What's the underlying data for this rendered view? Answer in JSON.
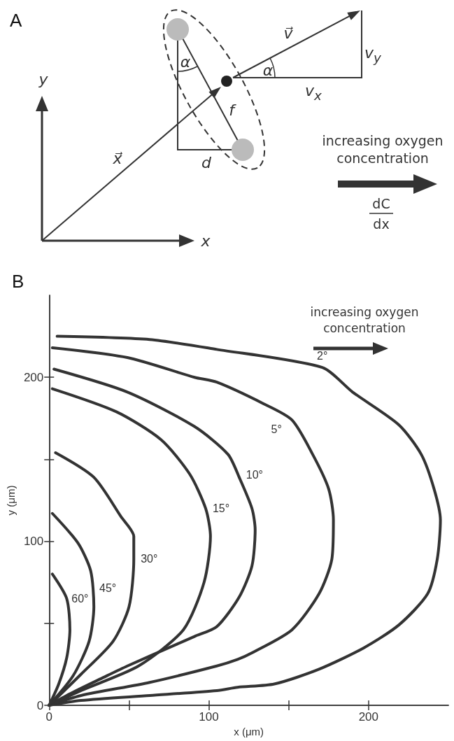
{
  "chart_data": [
    {
      "type": "other",
      "title": "A",
      "annotations": [
        "y",
        "x",
        "x⃗",
        "v⃗",
        "v$_{y}$",
        "v$_{x}$",
        "α",
        "α",
        "f",
        "d",
        "increasing oxygen concentration",
        "dC",
        "dx"
      ]
    },
    {
      "type": "line",
      "title": "B",
      "xlabel": "x (μm)",
      "ylabel": "y (μm)",
      "xlim": [
        0,
        250
      ],
      "ylim": [
        0,
        250
      ],
      "xticks": [
        0,
        {
          "value": 50,
          "label": null
        },
        100,
        {
          "value": 150,
          "label": null
        },
        200
      ],
      "yticks": [
        0,
        {
          "value": 50,
          "label": null
        },
        100,
        {
          "value": 150,
          "label": null
        },
        200
      ],
      "line_style": "solid",
      "series": [
        {
          "name": "2°",
          "color": "#333333",
          "x": [
            5,
            63,
            105,
            171,
            190,
            219,
            233,
            241,
            245,
            243,
            237,
            219,
            197,
            169,
            141,
            118,
            105,
            63,
            20,
            0
          ],
          "values": [
            225,
            223,
            217,
            206,
            191,
            171,
            153,
            132,
            113,
            89,
            68,
            49,
            35,
            22,
            13,
            11,
            9,
            6,
            3,
            0
          ]
        },
        {
          "name": "5°",
          "color": "#333333",
          "x": [
            2,
            49,
            91,
            105,
            134,
            152,
            165,
            175,
            178,
            177,
            169,
            152,
            127,
            118,
            105,
            63,
            20,
            0
          ],
          "values": [
            218,
            212,
            200,
            197,
            184,
            174,
            153,
            132,
            113,
            89,
            68,
            46,
            32,
            28,
            24,
            14,
            6,
            0
          ]
        },
        {
          "name": "10°",
          "color": "#333333",
          "x": [
            3,
            49,
            91,
            112,
            119,
            127,
            129,
            127,
            119,
            105,
            91,
            77,
            49,
            34,
            13,
            0
          ],
          "values": [
            205,
            191,
            170,
            153,
            139,
            120,
            107,
            85,
            66,
            48,
            42,
            36,
            24,
            17,
            7,
            0
          ]
        },
        {
          "name": "15°",
          "color": "#333333",
          "x": [
            2,
            42,
            70,
            88,
            98,
            101,
            97,
            84,
            56,
            20,
            0
          ],
          "values": [
            193,
            179,
            162,
            141,
            120,
            103,
            75,
            46,
            24,
            9,
            0
          ]
        },
        {
          "name": "30°",
          "color": "#333333",
          "x": [
            4,
            28,
            45,
            53,
            53,
            50,
            40,
            20,
            0
          ],
          "values": [
            154,
            139,
            115,
            103,
            89,
            60,
            39,
            19,
            0
          ]
        },
        {
          "name": "45°",
          "color": "#333333",
          "x": [
            2,
            18,
            26,
            28,
            25,
            15,
            0
          ],
          "values": [
            117,
            99,
            82,
            60,
            39,
            18,
            0
          ]
        },
        {
          "name": "60°",
          "color": "#333333",
          "x": [
            2,
            11,
            13,
            11,
            6,
            0
          ],
          "values": [
            80,
            65,
            46,
            29,
            13,
            0
          ]
        }
      ],
      "annotations": [
        "increasing oxygen concentration"
      ]
    }
  ]
}
